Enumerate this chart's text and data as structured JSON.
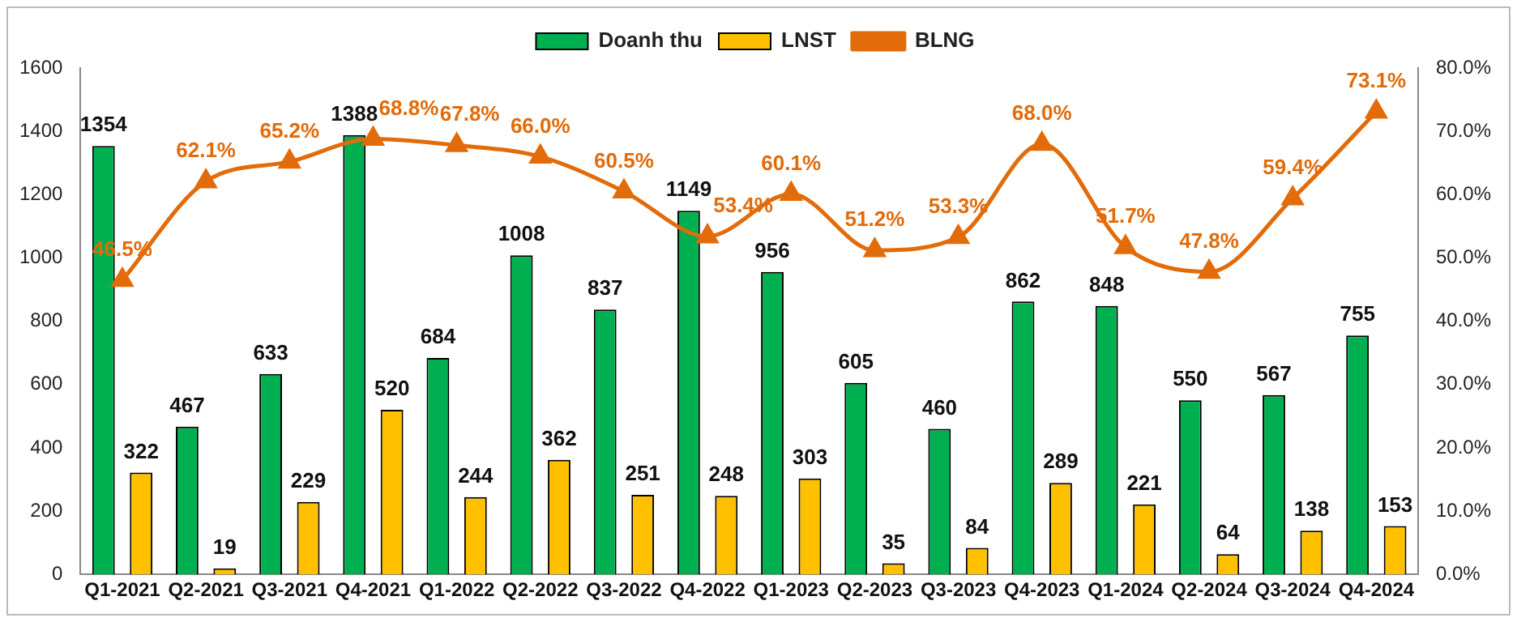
{
  "chart_data": {
    "type": "bar",
    "categories": [
      "Q1-2021",
      "Q2-2021",
      "Q3-2021",
      "Q4-2021",
      "Q1-2022",
      "Q2-2022",
      "Q3-2022",
      "Q4-2022",
      "Q1-2023",
      "Q2-2023",
      "Q3-2023",
      "Q4-2023",
      "Q1-2024",
      "Q2-2024",
      "Q3-2024",
      "Q4-2024"
    ],
    "series": [
      {
        "name": "Doanh thu",
        "color": "#00b050",
        "values": [
          1354,
          467,
          633,
          1388,
          684,
          1008,
          837,
          1149,
          956,
          605,
          460,
          862,
          848,
          550,
          567,
          755
        ]
      },
      {
        "name": "LNST",
        "color": "#ffc000",
        "values": [
          322,
          19,
          229,
          520,
          244,
          362,
          251,
          248,
          303,
          35,
          84,
          289,
          221,
          64,
          138,
          153
        ]
      },
      {
        "name": "BLNG",
        "type": "line",
        "axis": "y2",
        "color": "#e26b0a",
        "values": [
          46.5,
          62.1,
          65.2,
          68.8,
          67.8,
          66.0,
          60.5,
          53.4,
          60.1,
          51.2,
          53.3,
          68.0,
          51.7,
          47.8,
          59.4,
          73.1
        ],
        "value_labels": [
          "46.5%",
          "62.1%",
          "65.2%",
          "68.8%",
          "67.8%",
          "66.0%",
          "60.5%",
          "53.4%",
          "60.1%",
          "51.2%",
          "53.3%",
          "68.0%",
          "51.7%",
          "47.8%",
          "59.4%",
          "73.1%"
        ]
      }
    ],
    "ylim": [
      0,
      1600
    ],
    "yticks": [
      0,
      200,
      400,
      600,
      800,
      1000,
      1200,
      1400,
      1600
    ],
    "y2lim": [
      0,
      80
    ],
    "y2ticks": [
      {
        "value": 0,
        "label": "0.0%"
      },
      {
        "value": 10,
        "label": "10.0%"
      },
      {
        "value": 20,
        "label": "20.0%"
      },
      {
        "value": 30,
        "label": "30.0%"
      },
      {
        "value": 40,
        "label": "40.0%"
      },
      {
        "value": 50,
        "label": "50.0%"
      },
      {
        "value": 60,
        "label": "60.0%"
      },
      {
        "value": 70,
        "label": "70.0%"
      },
      {
        "value": 80,
        "label": "80.0%"
      }
    ],
    "data_labels": true,
    "grid": false,
    "legend": "top",
    "marker": "triangle",
    "line_style": "solid"
  }
}
